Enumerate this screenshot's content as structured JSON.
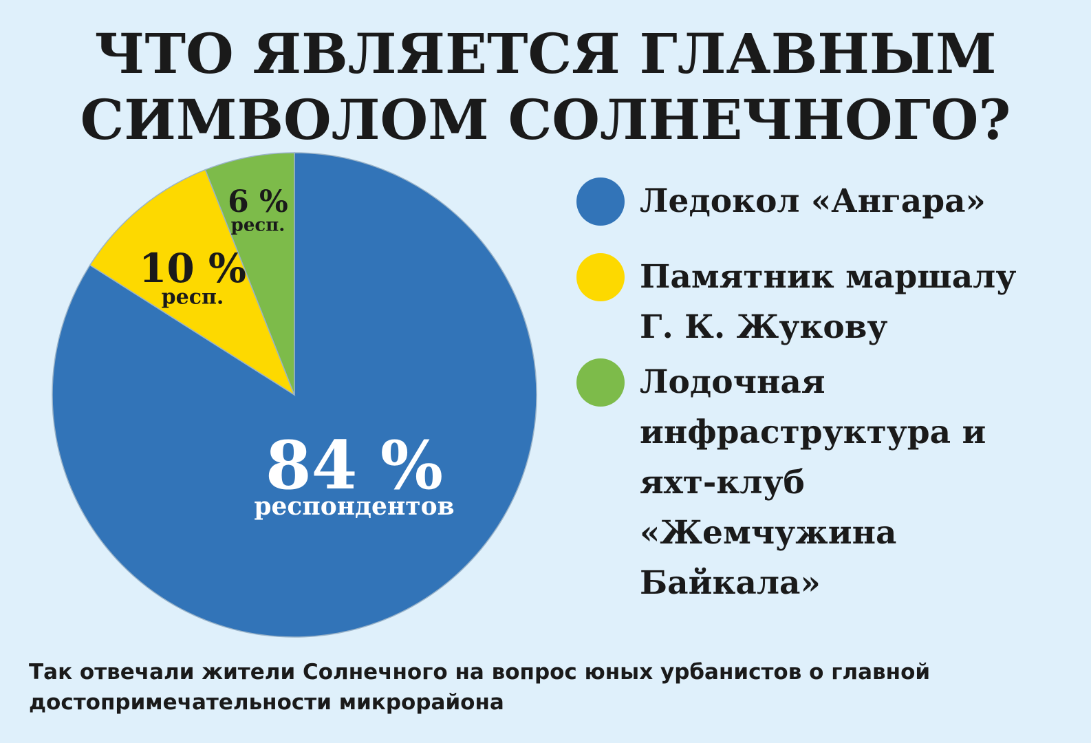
{
  "chart_data": {
    "type": "pie",
    "title": "ЧТО ЯВЛЯЕТСЯ ГЛАВНЫМ СИМВОЛОМ СОЛНЕЧНОГО?",
    "categories": [
      "Ледокол «Ангара»",
      "Памятник маршалу Г. К. Жукову",
      "Лодочная инфраструктура и яхт-клуб «Жемчужина Байкала»"
    ],
    "values": [
      84,
      10,
      6
    ],
    "value_labels": [
      "84 %",
      "10 %",
      "6 %"
    ],
    "label_notes": [
      "респондентов",
      "респ.",
      "респ."
    ],
    "colors": [
      "#3274b8",
      "#fdd900",
      "#7dbb4a"
    ],
    "footnote": "Так отвечали жители Солнечного на вопрос юных урбанистов о главной достопримечательности микрорайона"
  }
}
